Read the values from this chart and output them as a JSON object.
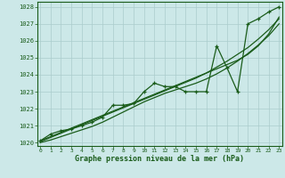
{
  "title": "Graphe pression niveau de la mer (hPa)",
  "x_labels": [
    "0",
    "1",
    "2",
    "3",
    "4",
    "5",
    "6",
    "7",
    "8",
    "9",
    "10",
    "11",
    "12",
    "13",
    "14",
    "15",
    "16",
    "17",
    "18",
    "19",
    "20",
    "21",
    "22",
    "23"
  ],
  "x_values": [
    0,
    1,
    2,
    3,
    4,
    5,
    6,
    7,
    8,
    9,
    10,
    11,
    12,
    13,
    14,
    15,
    16,
    17,
    18,
    19,
    20,
    21,
    22,
    23
  ],
  "main_line": [
    1020.1,
    1020.5,
    1020.7,
    1020.8,
    1021.0,
    1021.2,
    1021.5,
    1022.2,
    1022.2,
    1022.3,
    1023.0,
    1023.5,
    1023.3,
    1023.3,
    1023.0,
    1023.0,
    1023.0,
    1025.7,
    1024.4,
    1023.0,
    1027.0,
    1027.3,
    1027.7,
    1028.0
  ],
  "smooth_line1": [
    1020.1,
    1020.35,
    1020.6,
    1020.85,
    1021.1,
    1021.35,
    1021.6,
    1021.85,
    1022.1,
    1022.35,
    1022.6,
    1022.85,
    1023.1,
    1023.35,
    1023.6,
    1023.85,
    1024.1,
    1024.35,
    1024.6,
    1024.85,
    1025.2,
    1025.7,
    1026.4,
    1027.4
  ],
  "smooth_line2": [
    1020.05,
    1020.3,
    1020.55,
    1020.8,
    1021.05,
    1021.3,
    1021.55,
    1021.8,
    1022.05,
    1022.3,
    1022.55,
    1022.8,
    1023.05,
    1023.3,
    1023.55,
    1023.8,
    1024.1,
    1024.45,
    1024.8,
    1025.2,
    1025.6,
    1026.1,
    1026.65,
    1027.3
  ],
  "smooth_line3": [
    1020.0,
    1020.15,
    1020.35,
    1020.55,
    1020.75,
    1020.95,
    1021.2,
    1021.5,
    1021.8,
    1022.1,
    1022.4,
    1022.65,
    1022.9,
    1023.1,
    1023.3,
    1023.5,
    1023.75,
    1024.05,
    1024.4,
    1024.8,
    1025.25,
    1025.75,
    1026.3,
    1027.0
  ],
  "line_color": "#1a5c1a",
  "bg_color": "#cce8e8",
  "grid_color": "#aacccc",
  "ylim": [
    1019.8,
    1028.3
  ],
  "xlim": [
    -0.3,
    23.3
  ],
  "yticks": [
    1020,
    1021,
    1022,
    1023,
    1024,
    1025,
    1026,
    1027,
    1028
  ]
}
